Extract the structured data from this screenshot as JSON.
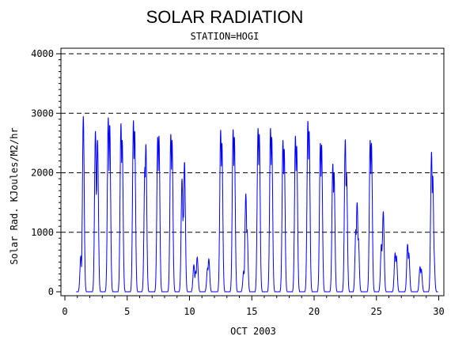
{
  "chart_data": {
    "type": "line",
    "title": "SOLAR RADIATION",
    "subtitle": "STATION=HOGI",
    "xlabel": "OCT 2003",
    "ylabel": "Solar Rad. KJoules/M2/hr",
    "xlim": [
      0,
      30.2
    ],
    "ylim": [
      0,
      4050
    ],
    "x_ticks": [
      0,
      5,
      10,
      15,
      20,
      25,
      30
    ],
    "x_tick_labels": [
      "0",
      "5",
      "10",
      "15",
      "20",
      "25",
      "30"
    ],
    "y_ticks": [
      0,
      1000,
      2000,
      3000,
      4000
    ],
    "y_tick_labels": [
      "0",
      "1000",
      "2000",
      "3000",
      "4000"
    ],
    "grid": "horizontal dashed at major y ticks",
    "line_color": "#0000ff",
    "axis_color": "#000000",
    "daily_peaks": [
      {
        "day": 1,
        "peaks": [
          [
            1.28,
            600
          ],
          [
            1.48,
            2950
          ]
        ]
      },
      {
        "day": 2,
        "peaks": [
          [
            2.45,
            2700
          ],
          [
            2.55,
            1700
          ],
          [
            2.62,
            2550
          ]
        ]
      },
      {
        "day": 3,
        "peaks": [
          [
            3.48,
            2930
          ],
          [
            3.6,
            2800
          ]
        ]
      },
      {
        "day": 4,
        "peaks": [
          [
            4.5,
            2830
          ],
          [
            4.6,
            2550
          ]
        ]
      },
      {
        "day": 5,
        "peaks": [
          [
            5.5,
            2880
          ],
          [
            5.6,
            2700
          ]
        ]
      },
      {
        "day": 6,
        "peaks": [
          [
            6.5,
            2480
          ],
          [
            6.42,
            2100
          ]
        ]
      },
      {
        "day": 7,
        "peaks": [
          [
            7.45,
            2600
          ],
          [
            7.55,
            2620
          ]
        ]
      },
      {
        "day": 8,
        "peaks": [
          [
            8.5,
            2650
          ],
          [
            8.6,
            2550
          ]
        ]
      },
      {
        "day": 9,
        "peaks": [
          [
            9.4,
            1900
          ],
          [
            9.5,
            1300
          ],
          [
            9.6,
            2180
          ]
        ]
      },
      {
        "day": 10,
        "peaks": [
          [
            10.35,
            450
          ],
          [
            10.5,
            350
          ],
          [
            10.62,
            580
          ]
        ]
      },
      {
        "day": 11,
        "peaks": [
          [
            11.45,
            400
          ],
          [
            11.55,
            550
          ]
        ]
      },
      {
        "day": 12,
        "peaks": [
          [
            12.5,
            2720
          ],
          [
            12.6,
            2500
          ]
        ]
      },
      {
        "day": 13,
        "peaks": [
          [
            13.5,
            2730
          ],
          [
            13.6,
            2600
          ]
        ]
      },
      {
        "day": 14,
        "peaks": [
          [
            14.35,
            350
          ],
          [
            14.52,
            1650
          ],
          [
            14.62,
            1050
          ]
        ]
      },
      {
        "day": 15,
        "peaks": [
          [
            15.5,
            2750
          ],
          [
            15.6,
            2650
          ]
        ]
      },
      {
        "day": 16,
        "peaks": [
          [
            16.5,
            2750
          ],
          [
            16.6,
            2600
          ]
        ]
      },
      {
        "day": 17,
        "peaks": [
          [
            17.5,
            2550
          ],
          [
            17.6,
            2400
          ]
        ]
      },
      {
        "day": 18,
        "peaks": [
          [
            18.5,
            2620
          ],
          [
            18.6,
            2450
          ]
        ]
      },
      {
        "day": 19,
        "peaks": [
          [
            19.5,
            2870
          ],
          [
            19.6,
            2700
          ]
        ]
      },
      {
        "day": 20,
        "peaks": [
          [
            20.5,
            2500
          ],
          [
            20.6,
            2470
          ]
        ]
      },
      {
        "day": 21,
        "peaks": [
          [
            21.5,
            2150
          ],
          [
            21.6,
            2000
          ]
        ]
      },
      {
        "day": 22,
        "peaks": [
          [
            22.5,
            2560
          ],
          [
            22.6,
            2000
          ]
        ]
      },
      {
        "day": 23,
        "peaks": [
          [
            23.35,
            1050
          ],
          [
            23.45,
            1500
          ],
          [
            23.55,
            900
          ]
        ]
      },
      {
        "day": 24,
        "peaks": [
          [
            24.5,
            2550
          ],
          [
            24.6,
            2500
          ]
        ]
      },
      {
        "day": 25,
        "peaks": [
          [
            25.4,
            800
          ],
          [
            25.55,
            1350
          ],
          [
            25.5,
            900
          ]
        ]
      },
      {
        "day": 26,
        "peaks": [
          [
            26.5,
            650
          ],
          [
            26.6,
            600
          ]
        ]
      },
      {
        "day": 27,
        "peaks": [
          [
            27.5,
            800
          ],
          [
            27.6,
            650
          ]
        ]
      },
      {
        "day": 28,
        "peaks": [
          [
            28.5,
            420
          ],
          [
            28.6,
            380
          ]
        ]
      },
      {
        "day": 29,
        "peaks": [
          [
            29.42,
            2350
          ],
          [
            29.52,
            1950
          ],
          [
            29.6,
            750
          ]
        ]
      }
    ]
  }
}
